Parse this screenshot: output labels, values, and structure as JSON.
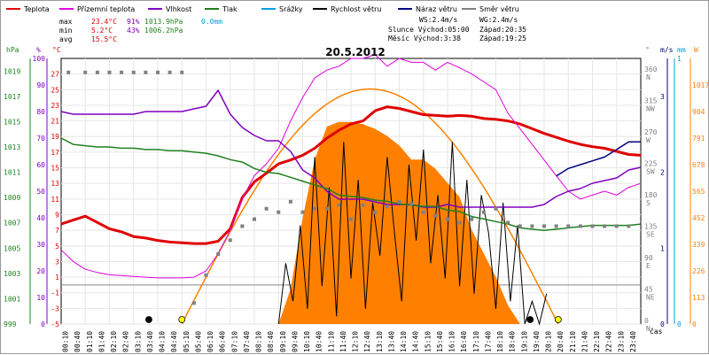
{
  "chart_data": {
    "type": "line",
    "title": "20.5.2012",
    "legend": [
      {
        "label": "Teplota",
        "color": "#e00000"
      },
      {
        "label": "Přízemní teplota",
        "color": "#e000e0"
      },
      {
        "label": "Vlhkost",
        "color": "#8000c0"
      },
      {
        "label": "Tlak",
        "color": "#208020"
      },
      {
        "label": "Srážky",
        "color": "#00a0e0"
      },
      {
        "label": "Rychlost větru",
        "color": "#000000"
      },
      {
        "label": "Náraz větru",
        "color": "#000080"
      },
      {
        "label": "Směr větru",
        "color": "#808080"
      }
    ],
    "stats": {
      "max_label": "max",
      "max_temp": "23.4°C",
      "max_hum": "91%",
      "max_press": "1013.9hPa",
      "rain": "0.0mm",
      "min_label": "min",
      "min_temp": "5.2°C",
      "min_hum": "43%",
      "min_press": "1006.2hPa",
      "avg_label": "avg",
      "avg_temp": "15.5°C",
      "ws": "WS:2.4m/s",
      "wg": "WG:2.4m/s",
      "sun_rise": "Slunce Východ:05:00",
      "sun_set": "Západ:20:35",
      "moon_rise": "Měsíc  Východ:3:38",
      "moon_set": "Západ:19:25"
    },
    "axis_units": {
      "hpa": "hPa",
      "pct": "%",
      "degc": "°C",
      "deg": "°",
      "ms": "m/s",
      "mm": "mm",
      "wm2": "W",
      "time": "čas"
    },
    "left_hpa_ticks": [
      "999",
      "1001",
      "1003",
      "1005",
      "1007",
      "1009",
      "1011",
      "1013",
      "1015",
      "1017",
      "1019"
    ],
    "left_pct_ticks": [
      "0",
      "10",
      "20",
      "30",
      "40",
      "50",
      "60",
      "70",
      "80",
      "90",
      "100"
    ],
    "left_temp_ticks": [
      "-5",
      "-3",
      "-1",
      "1",
      "3",
      "5",
      "7",
      "9",
      "11",
      "13",
      "15",
      "17",
      "19",
      "21",
      "23",
      "25",
      "27"
    ],
    "right_deg_ticks": [
      {
        "v": "0",
        "d": "N"
      },
      {
        "v": "45",
        "d": "NE"
      },
      {
        "v": "90",
        "d": "E"
      },
      {
        "v": "135",
        "d": "SE"
      },
      {
        "v": "180",
        "d": "S"
      },
      {
        "v": "225",
        "d": "SW"
      },
      {
        "v": "270",
        "d": "W"
      },
      {
        "v": "315",
        "d": "NW"
      },
      {
        "v": "360",
        "d": "N"
      }
    ],
    "right_ms_ticks": [
      "0",
      "1",
      "2",
      "3"
    ],
    "right_mm_ticks": [
      "0",
      "1"
    ],
    "right_w_ticks": [
      "0",
      "113",
      "226",
      "339",
      "452",
      "565",
      "678",
      "791",
      "904",
      "1017"
    ],
    "x_labels": [
      "00:10",
      "00:40",
      "01:10",
      "01:40",
      "02:10",
      "02:40",
      "03:10",
      "03:40",
      "04:10",
      "04:40",
      "05:10",
      "05:40",
      "06:10",
      "06:40",
      "07:10",
      "07:40",
      "08:10",
      "08:40",
      "09:10",
      "09:40",
      "10:10",
      "10:40",
      "11:10",
      "11:40",
      "12:10",
      "12:40",
      "13:10",
      "13:40",
      "14:10",
      "14:40",
      "15:10",
      "15:40",
      "16:10",
      "16:40",
      "17:10",
      "17:40",
      "18:10",
      "18:40",
      "19:10",
      "19:40",
      "20:10",
      "20:40",
      "21:10",
      "21:40",
      "22:10",
      "22:40",
      "23:10",
      "23:40"
    ],
    "xlabel": "čas",
    "hours": [
      0,
      0.5,
      1,
      1.5,
      2,
      2.5,
      3,
      3.5,
      4,
      4.5,
      5,
      5.5,
      6,
      6.5,
      7,
      7.5,
      8,
      8.5,
      9,
      9.5,
      10,
      10.5,
      11,
      11.5,
      12,
      12.5,
      13,
      13.5,
      14,
      14.5,
      15,
      15.5,
      16,
      16.5,
      17,
      17.5,
      18,
      18.5,
      19,
      19.5,
      20,
      20.5,
      21,
      21.5,
      22,
      22.5,
      23,
      23.5,
      24
    ],
    "series": [
      {
        "name": "Teplota",
        "unit": "°C",
        "color": "#e00000",
        "width": 3,
        "values": [
          7.8,
          8.3,
          8.8,
          8.0,
          7.2,
          6.8,
          6.2,
          6.0,
          5.7,
          5.5,
          5.4,
          5.3,
          5.3,
          5.6,
          7.2,
          11.2,
          13.2,
          14.3,
          15.5,
          16.0,
          16.6,
          17.5,
          18.8,
          19.8,
          20.6,
          21.0,
          22.3,
          22.8,
          22.6,
          22.2,
          21.8,
          21.7,
          21.6,
          21.7,
          21.6,
          21.3,
          21.2,
          21.0,
          20.6,
          20.0,
          19.4,
          18.9,
          18.4,
          18.0,
          17.7,
          17.5,
          17.1,
          16.7,
          16.6
        ]
      },
      {
        "name": "Přízemní teplota",
        "unit": "°C",
        "color": "#e000e0",
        "width": 1,
        "values": [
          4.5,
          3.0,
          2.0,
          1.6,
          1.3,
          1.2,
          1.1,
          1.0,
          0.9,
          0.9,
          0.9,
          1.0,
          1.8,
          4.0,
          7.0,
          11.0,
          14.0,
          15.5,
          17.5,
          21.0,
          24.0,
          26.5,
          27.5,
          28.0,
          29.0,
          29.0,
          29.5,
          28.0,
          29.0,
          28.5,
          28.5,
          27.5,
          28.5,
          27.8,
          27.0,
          26.0,
          25.0,
          22.0,
          20.0,
          18.0,
          16.0,
          14.0,
          12.0,
          11.0,
          11.5,
          12.0,
          11.5,
          12.5,
          13.0
        ]
      },
      {
        "name": "Vlhkost",
        "unit": "%",
        "color": "#8000c0",
        "width": 1.5,
        "values": [
          80,
          79,
          79,
          79,
          79,
          79,
          79,
          80,
          80,
          80,
          80,
          81,
          82,
          88,
          79,
          74,
          71,
          69,
          69,
          65,
          58,
          55,
          50,
          47,
          47,
          47,
          46,
          45,
          45,
          45,
          44,
          44,
          45,
          44,
          44,
          44,
          44,
          44,
          44,
          44,
          45,
          48,
          50,
          51,
          53,
          54,
          55,
          58,
          59
        ]
      },
      {
        "name": "Tlak",
        "unit": "hPa",
        "color": "#208020",
        "width": 1.5,
        "values": [
          1013.7,
          1013.2,
          1013.1,
          1013.0,
          1013.0,
          1012.9,
          1012.9,
          1012.8,
          1012.8,
          1012.7,
          1012.7,
          1012.6,
          1012.5,
          1012.3,
          1012.0,
          1011.8,
          1011.3,
          1011.0,
          1010.9,
          1010.6,
          1010.3,
          1010.0,
          1009.7,
          1009.2,
          1009.1,
          1009.0,
          1008.8,
          1008.7,
          1008.5,
          1008.4,
          1008.3,
          1008.3,
          1008.0,
          1007.9,
          1007.5,
          1007.3,
          1007.1,
          1006.9,
          1006.6,
          1006.5,
          1006.4,
          1006.5,
          1006.6,
          1006.7,
          1006.8,
          1006.8,
          1006.8,
          1006.8,
          1006.9
        ]
      },
      {
        "name": "Náraz větru",
        "unit": "m/s",
        "color": "#000080",
        "width": 1.5,
        "values": [
          null,
          null,
          null,
          null,
          null,
          null,
          null,
          null,
          null,
          null,
          null,
          null,
          null,
          null,
          null,
          null,
          null,
          null,
          null,
          null,
          null,
          null,
          null,
          null,
          null,
          null,
          null,
          null,
          null,
          null,
          null,
          null,
          null,
          null,
          null,
          null,
          null,
          null,
          null,
          null,
          null,
          1.95,
          2.05,
          2.1,
          2.15,
          2.2,
          2.3,
          2.4,
          2.4
        ]
      }
    ],
    "solar_theoretical": {
      "name": "theoretical",
      "unit": "W",
      "color": "#ff8000",
      "x_start": 5.0,
      "x_end": 20.58,
      "peak": 1000
    },
    "solar_radiation": {
      "unit": "W",
      "color": "#ff8000",
      "hours": [
        9.0,
        9.5,
        10.0,
        10.5,
        11.0,
        11.5,
        12.0,
        12.5,
        13.0,
        13.5,
        14.0,
        14.5,
        15.0,
        15.5,
        16.0,
        16.5,
        17.0,
        17.5,
        18.0,
        18.5,
        19.0
      ],
      "values": [
        0,
        150,
        450,
        700,
        840,
        860,
        860,
        850,
        830,
        800,
        760,
        700,
        700,
        660,
        600,
        540,
        400,
        300,
        200,
        80,
        0
      ]
    },
    "wind_speed": {
      "unit": "m/s",
      "color": "#000000",
      "hours": [
        9.0,
        9.3,
        9.6,
        9.9,
        10.2,
        10.5,
        10.8,
        11.1,
        11.4,
        11.7,
        12.0,
        12.3,
        12.6,
        12.9,
        13.2,
        13.5,
        13.8,
        14.1,
        14.4,
        14.7,
        15.0,
        15.3,
        15.6,
        15.9,
        16.2,
        16.5,
        16.8,
        17.1,
        17.4,
        17.7,
        18.0,
        18.3,
        18.6,
        18.9,
        19.2,
        19.5,
        19.8,
        20.1
      ],
      "values": [
        0,
        0.8,
        0.3,
        1.3,
        0.2,
        2.2,
        0.5,
        1.8,
        0.1,
        2.4,
        0.6,
        1.9,
        0.2,
        1.6,
        0.9,
        2.2,
        1.2,
        0.3,
        2.1,
        1.1,
        2.3,
        0.8,
        1.7,
        0.6,
        2.4,
        0.5,
        1.9,
        0.4,
        1.7,
        1.2,
        0.2,
        1.6,
        0.3,
        1.3,
        0,
        0.3,
        0,
        0.4
      ]
    },
    "wind_direction_points": {
      "unit": "°",
      "color": "#808080",
      "hours": [
        0.3,
        1.0,
        1.5,
        2.0,
        2.5,
        3.0,
        3.5,
        4.0,
        4.5,
        5.0,
        5.5,
        6.0,
        6.5,
        7.0,
        7.5,
        8.0,
        8.5,
        9.0,
        9.5,
        10.0,
        10.5,
        11.0,
        11.5,
        12.0,
        12.5,
        13.0,
        13.5,
        14.0,
        14.5,
        15.0,
        15.5,
        16.0,
        16.5,
        17.0,
        17.5,
        18.0,
        18.5,
        19.0,
        19.5,
        20.0,
        20.5,
        21.0,
        21.5,
        22.0,
        22.5,
        23.0,
        23.5
      ],
      "values": [
        360,
        360,
        360,
        360,
        360,
        360,
        360,
        360,
        360,
        360,
        30,
        70,
        100,
        120,
        140,
        150,
        165,
        160,
        175,
        160,
        165,
        165,
        170,
        150,
        170,
        160,
        168,
        175,
        172,
        160,
        155,
        150,
        145,
        150,
        160,
        165,
        145,
        140,
        140,
        140,
        140,
        140,
        140,
        140,
        140,
        140,
        140
      ]
    },
    "markers": [
      {
        "name": "moonrise",
        "hour": 3.63,
        "color": "#000000"
      },
      {
        "name": "sunrise",
        "hour": 5.0,
        "color": "#ffff00"
      },
      {
        "name": "moonset",
        "hour": 19.42,
        "color": "#000000"
      },
      {
        "name": "sunset",
        "hour": 20.58,
        "color": "#ffff00"
      }
    ],
    "ranges": {
      "temp": [
        -5,
        29
      ],
      "pct": [
        0,
        100
      ],
      "hpa": [
        999,
        1020
      ],
      "deg": [
        0,
        380
      ],
      "ms": [
        0,
        3.5
      ],
      "w": [
        0,
        1130
      ],
      "x": [
        0,
        24
      ]
    }
  }
}
